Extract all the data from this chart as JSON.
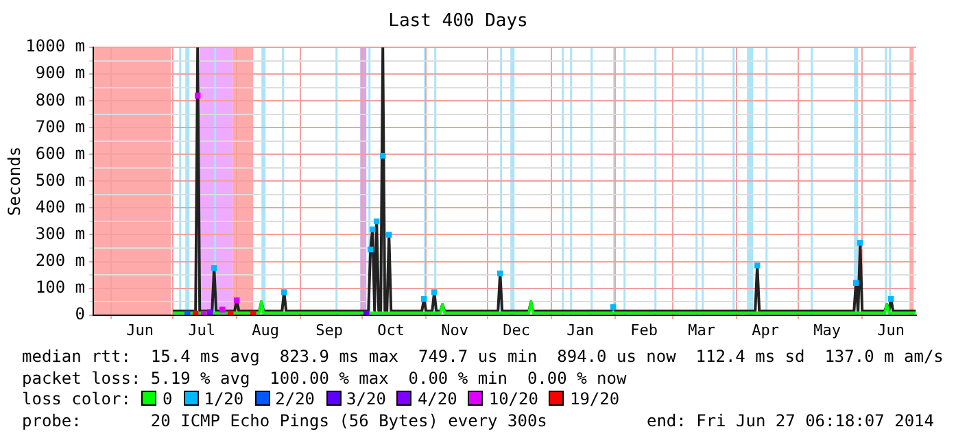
{
  "chart_data": {
    "type": "line",
    "title": "Last 400 Days",
    "ylabel": "Seconds",
    "legend_title": "loss color:",
    "legend": "bottom",
    "grid": true,
    "xlim": [
      "2013-05-23T06:18",
      "2014-06-27T06:18"
    ],
    "ylim": [
      0,
      1000
    ],
    "yticks": [
      0,
      {
        "value": 50,
        "label": null
      },
      {
        "value": 100,
        "label": "100 m"
      },
      {
        "value": 150,
        "label": null
      },
      {
        "value": 200,
        "label": "200 m"
      },
      {
        "value": 250,
        "label": null
      },
      {
        "value": 300,
        "label": "300 m"
      },
      {
        "value": 350,
        "label": null
      },
      {
        "value": 400,
        "label": "400 m"
      },
      {
        "value": 450,
        "label": null
      },
      {
        "value": 500,
        "label": "500 m"
      },
      {
        "value": 550,
        "label": null
      },
      {
        "value": 600,
        "label": "600 m"
      },
      {
        "value": 650,
        "label": null
      },
      {
        "value": 700,
        "label": "700 m"
      },
      {
        "value": 750,
        "label": null
      },
      {
        "value": 800,
        "label": "800 m"
      },
      {
        "value": 850,
        "label": null
      },
      {
        "value": 900,
        "label": "900 m"
      },
      {
        "value": 950,
        "label": null
      },
      {
        "value": 1000,
        "label": "1000 m"
      }
    ],
    "xticks": [
      {
        "value": "2013-06-01",
        "label": null
      },
      {
        "value": "2013-06-15",
        "label": "Jun"
      },
      {
        "value": "2013-07-01",
        "label": null
      },
      {
        "value": "2013-07-15",
        "label": "Jul"
      },
      {
        "value": "2013-08-01",
        "label": null
      },
      {
        "value": "2013-08-15",
        "label": "Aug"
      },
      {
        "value": "2013-09-01",
        "label": null
      },
      {
        "value": "2013-09-15",
        "label": "Sep"
      },
      {
        "value": "2013-10-01",
        "label": null
      },
      {
        "value": "2013-10-15",
        "label": "Oct"
      },
      {
        "value": "2013-11-01",
        "label": null
      },
      {
        "value": "2013-11-15",
        "label": "Nov"
      },
      {
        "value": "2013-12-01",
        "label": null
      },
      {
        "value": "2013-12-15",
        "label": "Dec"
      },
      {
        "value": "2014-01-01",
        "label": null
      },
      {
        "value": "2014-01-15",
        "label": "Jan"
      },
      {
        "value": "2014-02-01",
        "label": null
      },
      {
        "value": "2014-02-15",
        "label": "Feb"
      },
      {
        "value": "2014-03-01",
        "label": null
      },
      {
        "value": "2014-03-15",
        "label": "Mar"
      },
      {
        "value": "2014-04-01",
        "label": null
      },
      {
        "value": "2014-04-15",
        "label": "Apr"
      },
      {
        "value": "2014-05-01",
        "label": null
      },
      {
        "value": "2014-05-15",
        "label": "May"
      },
      {
        "value": "2014-06-01",
        "label": null
      },
      {
        "value": "2014-06-15",
        "label": "Jun"
      }
    ],
    "bands": [
      {
        "axis": "x",
        "from": "2013-05-23T06:18",
        "to": "2013-06-30",
        "color": "#ffaaaa"
      },
      {
        "axis": "x",
        "from": "2013-07-14",
        "to": "2013-07-30",
        "color": "#eeaaff"
      },
      {
        "axis": "x",
        "from": "2013-07-30",
        "to": "2013-08-09",
        "color": "#ffaaaa"
      },
      {
        "axis": "x",
        "from": "2013-07-04",
        "to": "2013-07-05",
        "color": "#aae4f8"
      },
      {
        "axis": "x",
        "from": "2013-07-07",
        "to": "2013-07-09",
        "color": "#aae4f8"
      },
      {
        "axis": "x",
        "from": "2013-07-21",
        "to": "2013-07-22",
        "color": "#aae4f8"
      },
      {
        "axis": "x",
        "from": "2013-08-13",
        "to": "2013-08-15",
        "color": "#aae4f8"
      },
      {
        "axis": "x",
        "from": "2013-08-23",
        "to": "2013-08-24",
        "color": "#aae4f8"
      },
      {
        "axis": "x",
        "from": "2013-09-18",
        "to": "2013-09-19",
        "color": "#aae4f8"
      },
      {
        "axis": "x",
        "from": "2013-09-30",
        "to": "2013-10-03",
        "color": "#c8aaff"
      },
      {
        "axis": "x",
        "from": "2013-10-04",
        "to": "2013-10-05",
        "color": "#aae4f8"
      },
      {
        "axis": "x",
        "from": "2013-10-31",
        "to": "2013-11-01",
        "color": "#aae4f8"
      },
      {
        "axis": "x",
        "from": "2013-11-05",
        "to": "2013-11-06",
        "color": "#aae4f8"
      },
      {
        "axis": "x",
        "from": "2013-12-07",
        "to": "2013-12-08",
        "color": "#aae4f8"
      },
      {
        "axis": "x",
        "from": "2013-12-12",
        "to": "2013-12-14",
        "color": "#aae4f8"
      },
      {
        "axis": "x",
        "from": "2014-01-06",
        "to": "2014-01-07",
        "color": "#aae4f8"
      },
      {
        "axis": "x",
        "from": "2014-01-10",
        "to": "2014-01-11",
        "color": "#aae4f8"
      },
      {
        "axis": "x",
        "from": "2014-01-20",
        "to": "2014-01-21",
        "color": "#aae4f8"
      },
      {
        "axis": "x",
        "from": "2014-01-31",
        "to": "2014-02-01",
        "color": "#aae4f8"
      },
      {
        "axis": "x",
        "from": "2014-02-05",
        "to": "2014-02-06",
        "color": "#aae4f8"
      },
      {
        "axis": "x",
        "from": "2014-02-20",
        "to": "2014-02-21",
        "color": "#aae4f8"
      },
      {
        "axis": "x",
        "from": "2014-03-12",
        "to": "2014-03-13",
        "color": "#aae4f8"
      },
      {
        "axis": "x",
        "from": "2014-03-15",
        "to": "2014-03-16",
        "color": "#aae4f8"
      },
      {
        "axis": "x",
        "from": "2014-03-30",
        "to": "2014-03-31",
        "color": "#aae4f8"
      },
      {
        "axis": "x",
        "from": "2014-04-06",
        "to": "2014-04-09",
        "color": "#aae4f8"
      },
      {
        "axis": "x",
        "from": "2014-04-15",
        "to": "2014-04-16",
        "color": "#aae4f8"
      },
      {
        "axis": "x",
        "from": "2014-05-07",
        "to": "2014-05-08",
        "color": "#aae4f8"
      },
      {
        "axis": "x",
        "from": "2014-05-28",
        "to": "2014-05-30",
        "color": "#aae4f8"
      },
      {
        "axis": "x",
        "from": "2014-06-12",
        "to": "2014-06-13",
        "color": "#aae4f8"
      },
      {
        "axis": "x",
        "from": "2014-06-14",
        "to": "2014-06-15",
        "color": "#aae4f8"
      },
      {
        "axis": "x",
        "from": "2014-06-24",
        "to": "2014-06-26",
        "color": "#ffaaaa"
      }
    ],
    "series": [
      {
        "color": "#222222",
        "x": [
          "2013-07-01",
          "2013-07-12",
          "2013-07-13",
          "2013-07-14",
          "2013-07-20",
          "2013-07-21",
          "2013-07-22",
          "2013-07-31",
          "2013-08-01",
          "2013-08-02",
          "2013-08-12",
          "2013-08-13",
          "2013-08-14",
          "2013-08-23",
          "2013-08-24",
          "2013-08-25",
          "2013-10-04",
          "2013-10-05",
          "2013-10-06",
          "2013-10-07",
          "2013-10-08",
          "2013-10-09",
          "2013-10-10",
          "2013-10-11",
          "2013-10-12",
          "2013-10-13",
          "2013-10-14",
          "2013-10-15",
          "2013-10-30",
          "2013-10-31",
          "2013-11-01",
          "2013-11-04",
          "2013-11-05",
          "2013-11-06",
          "2013-11-08",
          "2013-11-09",
          "2013-11-10",
          "2013-12-06",
          "2013-12-07",
          "2013-12-08",
          "2013-12-21",
          "2013-12-22",
          "2013-12-23",
          "2014-01-30",
          "2014-01-31",
          "2014-02-01",
          "2014-04-10",
          "2014-04-11",
          "2014-04-12",
          "2014-05-28",
          "2014-05-29",
          "2014-05-30",
          "2014-05-31",
          "2014-06-01",
          "2014-06-12",
          "2014-06-13",
          "2014-06-14",
          "2014-06-15",
          "2014-06-16",
          "2014-06-27"
        ],
        "values": [
          15,
          15,
          1000,
          15,
          15,
          175,
          15,
          15,
          60,
          15,
          15,
          50,
          15,
          15,
          85,
          15,
          15,
          245,
          320,
          15,
          350,
          15,
          15,
          1000,
          15,
          15,
          300,
          15,
          15,
          60,
          15,
          15,
          85,
          15,
          15,
          40,
          15,
          15,
          155,
          15,
          15,
          50,
          15,
          15,
          30,
          15,
          15,
          185,
          15,
          15,
          120,
          15,
          270,
          15,
          15,
          40,
          15,
          60,
          15,
          15
        ]
      },
      {
        "name": "0",
        "color": "#00ff00",
        "x": [
          "2013-07-01",
          "2013-08-12",
          "2013-08-13",
          "2013-08-14",
          "2013-11-08",
          "2013-11-09",
          "2013-11-10",
          "2013-12-21",
          "2013-12-22",
          "2013-12-23",
          "2014-06-12",
          "2014-06-13",
          "2014-06-14",
          "2014-06-27"
        ],
        "values": [
          8,
          8,
          50,
          8,
          8,
          40,
          8,
          8,
          50,
          8,
          8,
          40,
          8,
          8
        ]
      },
      {
        "type": "scatter",
        "marker": "square",
        "name": "1/20",
        "color": "#00b8ff",
        "x": [
          "2013-07-21",
          "2013-08-24",
          "2013-10-05",
          "2013-10-06",
          "2013-10-08",
          "2013-10-11",
          "2013-10-14",
          "2013-10-31",
          "2013-11-05",
          "2013-12-07",
          "2014-01-31",
          "2014-04-11",
          "2014-05-29",
          "2014-05-31",
          "2014-06-15"
        ],
        "values": [
          175,
          85,
          245,
          320,
          350,
          595,
          300,
          60,
          85,
          155,
          30,
          185,
          120,
          270,
          60
        ]
      },
      {
        "type": "scatter",
        "marker": "square",
        "name": "2/20",
        "color": "#0059ff",
        "x": [
          "2013-07-08"
        ],
        "values": [
          5
        ]
      },
      {
        "type": "scatter",
        "marker": "square",
        "name": "3/20",
        "color": "#5e00ff",
        "x": [
          "2013-10-03"
        ],
        "values": [
          5
        ]
      },
      {
        "type": "scatter",
        "marker": "square",
        "name": "4/20",
        "color": "#7e00ff",
        "x": [
          "2013-07-19"
        ],
        "values": [
          10
        ]
      },
      {
        "type": "scatter",
        "marker": "square",
        "name": "10/20",
        "color": "#dd00ff",
        "x": [
          "2013-07-13",
          "2013-07-16",
          "2013-07-25",
          "2013-08-01"
        ],
        "values": [
          820,
          5,
          20,
          55
        ]
      },
      {
        "type": "scatter",
        "marker": "square",
        "name": "19/20",
        "color": "#ff0000",
        "x": [
          "2013-07-12",
          "2013-07-29",
          "2013-08-09"
        ],
        "values": [
          5,
          5,
          5
        ]
      }
    ],
    "annotations": [
      "median rtt:  15.4 ms avg  823.9 ms max  749.7 us min  894.0 us now  112.4 ms sd  137.0 m am/s",
      "packet loss: 5.19 % avg  100.00 % max  0.00 % min  0.00 % now",
      "probe:       20 ICMP Echo Pings (56 Bytes) every 300s",
      "end: Fri Jun 27 06:18:07 2014"
    ]
  }
}
